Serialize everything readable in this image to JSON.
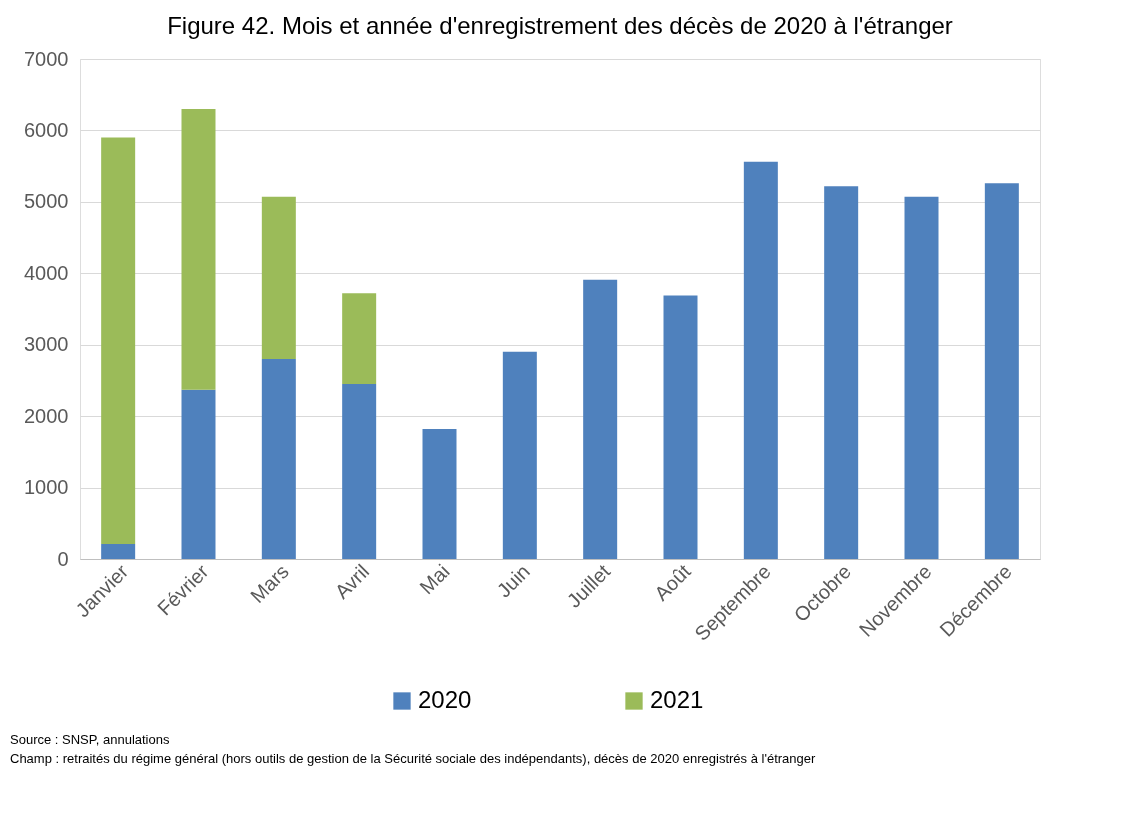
{
  "chart_data": {
    "type": "bar",
    "title": "Figure 42. Mois et année d'enregistrement des décès de 2020 à l'étranger",
    "categories": [
      "Janvier",
      "Février",
      "Mars",
      "Avril",
      "Mai",
      "Juin",
      "Juillet",
      "Août",
      "Septembre",
      "Octobre",
      "Novembre",
      "Décembre"
    ],
    "series": [
      {
        "name": "2020",
        "color": "#4f81bd",
        "values": [
          210,
          2370,
          2800,
          2450,
          1820,
          2900,
          3910,
          3690,
          5560,
          5220,
          5070,
          5260
        ]
      },
      {
        "name": "2021",
        "color": "#9bbb59",
        "values": [
          5690,
          3930,
          2270,
          1270,
          null,
          null,
          null,
          null,
          null,
          null,
          null,
          null
        ]
      }
    ],
    "stacked": true,
    "ylim": [
      0,
      7000
    ],
    "yticks": [
      0,
      1000,
      2000,
      3000,
      4000,
      5000,
      6000,
      7000
    ],
    "grid": "y",
    "legend": "bottom",
    "annotations": [
      "Source : SNSP, annulations",
      "Champ : retraités du régime général (hors outils de gestion de la Sécurité sociale des indépendants),  décès de 2020 enregistrés à l'étranger"
    ]
  }
}
